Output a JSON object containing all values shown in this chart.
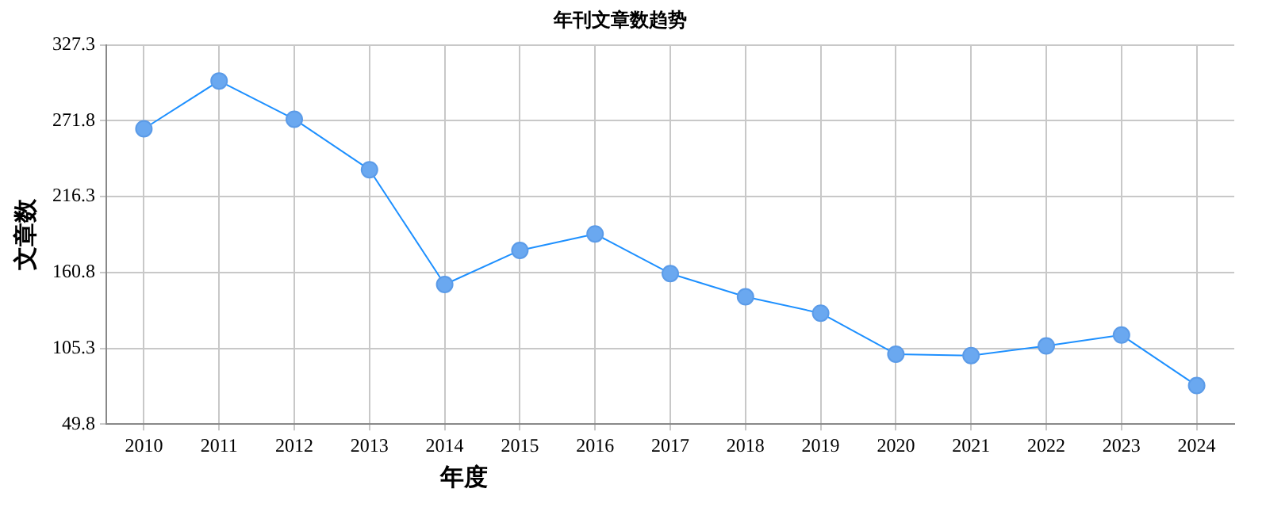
{
  "chart_data": {
    "type": "line",
    "title": "年刊文章数趋势",
    "xlabel": "年度",
    "ylabel": "文章数",
    "categories": [
      "2010",
      "2011",
      "2012",
      "2013",
      "2014",
      "2015",
      "2016",
      "2017",
      "2018",
      "2019",
      "2020",
      "2021",
      "2022",
      "2023",
      "2024"
    ],
    "series": [
      {
        "color": "#1e90ff",
        "values": [
          266,
          301,
          273,
          236,
          152,
          177,
          189,
          160,
          143,
          131,
          101,
          100,
          107,
          115,
          78
        ]
      }
    ],
    "ylim": [
      49.8,
      327.3
    ],
    "yticks": [
      49.8,
      105.3,
      160.8,
      216.3,
      271.8,
      327.3
    ],
    "grid": true,
    "legend": false,
    "marker": "circle",
    "line_style": "solid"
  }
}
